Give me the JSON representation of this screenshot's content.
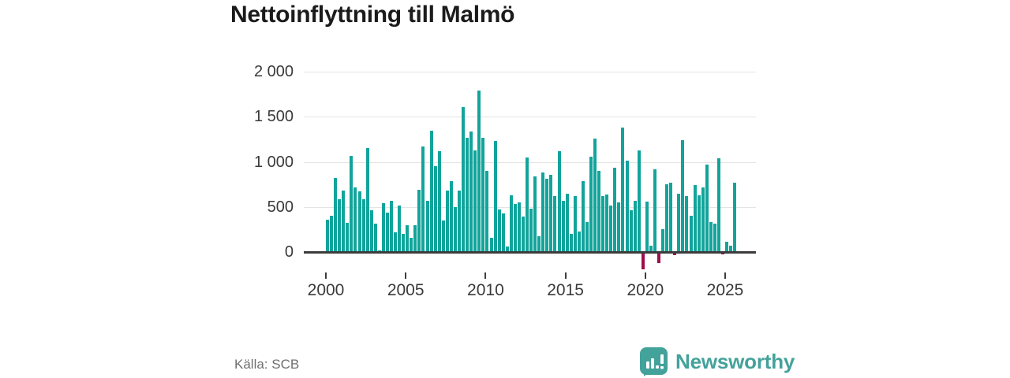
{
  "title": "Nettoinflyttning till Malmö",
  "source": "Källa: SCB",
  "brand": {
    "name": "Newsworthy"
  },
  "colors": {
    "bar_positive": "#12a49b",
    "bar_negative": "#9e0e4b",
    "axis": "#3c3c3c",
    "gridline": "#e4e4e4",
    "tick_label": "#3a3a3a",
    "title": "#1b1b1b",
    "source_text": "#6f6f6f",
    "logo_teal": "#43a29a"
  },
  "chart_data": {
    "type": "bar",
    "title": "Nettoinflyttning till Malmö",
    "frequency": "quarterly",
    "x_tick_labels": [
      "2000",
      "2005",
      "2010",
      "2015",
      "2020",
      "2025"
    ],
    "x_tick_values": [
      2000,
      2005,
      2010,
      2015,
      2020,
      2025
    ],
    "y_tick_labels": [
      "2 000",
      "1 500",
      "1 000",
      "500",
      "0"
    ],
    "y_tick_values": [
      2000,
      1500,
      1000,
      500,
      0
    ],
    "y_gridline_values": [
      2000,
      1500,
      1000,
      500
    ],
    "ylim": [
      -200,
      2000
    ],
    "grid": "horizontal only",
    "legend": "none",
    "series_name": "Nettoinflyttning",
    "data": [
      {
        "year": 2000,
        "quarters": [
          360,
          400,
          825,
          590
        ]
      },
      {
        "year": 2001,
        "quarters": [
          680,
          325,
          1065,
          715
        ]
      },
      {
        "year": 2002,
        "quarters": [
          670,
          585,
          1150,
          465
        ]
      },
      {
        "year": 2003,
        "quarters": [
          315,
          15,
          540,
          435
        ]
      },
      {
        "year": 2004,
        "quarters": [
          570,
          220,
          520,
          200
        ]
      },
      {
        "year": 2005,
        "quarters": [
          300,
          155,
          300,
          695
        ]
      },
      {
        "year": 2006,
        "quarters": [
          1175,
          565,
          1350,
          950
        ]
      },
      {
        "year": 2007,
        "quarters": [
          1120,
          350,
          685,
          790
        ]
      },
      {
        "year": 2008,
        "quarters": [
          500,
          680,
          1610,
          1270
        ]
      },
      {
        "year": 2009,
        "quarters": [
          1340,
          1130,
          1790,
          1270
        ]
      },
      {
        "year": 2010,
        "quarters": [
          905,
          160,
          1235,
          470
        ]
      },
      {
        "year": 2011,
        "quarters": [
          430,
          60,
          630,
          530
        ]
      },
      {
        "year": 2012,
        "quarters": [
          555,
          395,
          1050,
          485
        ]
      },
      {
        "year": 2013,
        "quarters": [
          840,
          175,
          885,
          815
        ]
      },
      {
        "year": 2014,
        "quarters": [
          855,
          620,
          1120,
          565
        ]
      },
      {
        "year": 2015,
        "quarters": [
          650,
          200,
          620,
          225
        ]
      },
      {
        "year": 2016,
        "quarters": [
          790,
          330,
          1055,
          1260
        ]
      },
      {
        "year": 2017,
        "quarters": [
          905,
          625,
          640,
          515
        ]
      },
      {
        "year": 2018,
        "quarters": [
          940,
          550,
          1385,
          1015
        ]
      },
      {
        "year": 2019,
        "quarters": [
          460,
          565,
          1130,
          -185
        ]
      },
      {
        "year": 2020,
        "quarters": [
          560,
          70,
          920,
          -115
        ]
      },
      {
        "year": 2021,
        "quarters": [
          255,
          755,
          770,
          -30
        ]
      },
      {
        "year": 2022,
        "quarters": [
          650,
          1240,
          620,
          405
        ]
      },
      {
        "year": 2023,
        "quarters": [
          740,
          630,
          720,
          975
        ]
      },
      {
        "year": 2024,
        "quarters": [
          330,
          315,
          1040,
          -20
        ]
      },
      {
        "year": 2025,
        "quarters": [
          110,
          70,
          770
        ]
      }
    ]
  }
}
